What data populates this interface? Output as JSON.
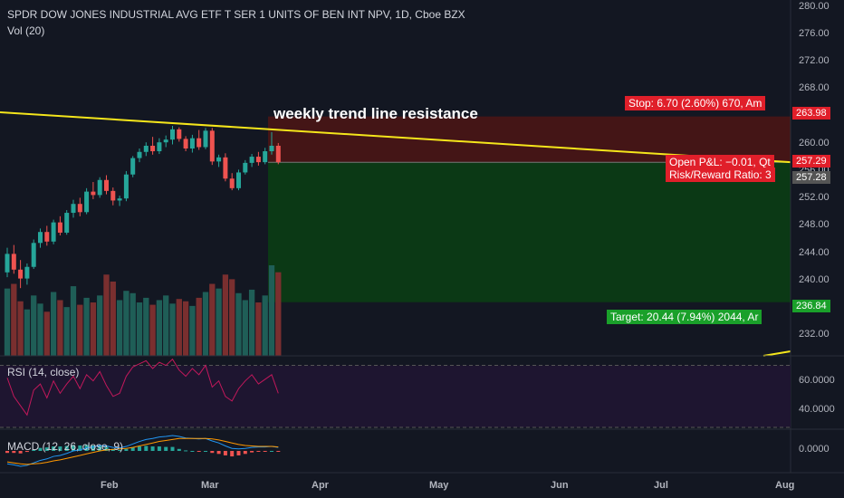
{
  "header": {
    "title": "SPDR DOW JONES INDUSTRIAL AVG ETF T SER 1 UNITS OF BEN INT NPV, 1D, Cboe BZX",
    "volume_label": "Vol (20)"
  },
  "annotation": "weekly trend line resistance",
  "position": {
    "stop_label": "Stop: 6.70 (2.60%) 670, Am",
    "pnl_label": "Open P&L: −0.01, Qt",
    "rr_label": "Risk/Reward Ratio: 3",
    "target_label": "Target: 20.44 (7.94%) 2044, Ar"
  },
  "price_axis": {
    "ticks": [
      "280.00",
      "276.00",
      "272.00",
      "268.00",
      "264.00",
      "260.00",
      "256.00",
      "252.00",
      "248.00",
      "244.00",
      "240.00",
      "236.00",
      "232.00"
    ],
    "markers": {
      "stop": "263.98",
      "last": "257.29",
      "entry": "257.28",
      "target": "236.84"
    }
  },
  "rsi": {
    "label": "RSI (14, close)",
    "ticks": [
      "60.0000",
      "40.0000"
    ]
  },
  "macd": {
    "label": "MACD (12, 26, close, 9)",
    "ticks": [
      "0.0000"
    ]
  },
  "time_axis": {
    "labels": [
      "Feb",
      "Mar",
      "Apr",
      "May",
      "Jun",
      "Jul",
      "Aug"
    ]
  },
  "colors": {
    "background": "#131722",
    "up": "#26a69a",
    "down": "#ef5350",
    "trendline": "#f5e61b",
    "stop_zone": "#4a1515",
    "target_zone": "#0b3d14",
    "stop_tag": "#e01f2a",
    "target_tag": "#1aa02a",
    "rsi_line": "#c2185b",
    "macd_line": "#2196f3",
    "signal_line": "#ff9800"
  },
  "chart_data": {
    "type": "candlestick",
    "price_range": [
      230,
      281
    ],
    "candles": [
      [
        241.2,
        244.8,
        240.5,
        243.9
      ],
      [
        243.9,
        245.2,
        241.0,
        241.6
      ],
      [
        241.6,
        243.0,
        238.9,
        240.3
      ],
      [
        240.3,
        242.5,
        239.4,
        242.0
      ],
      [
        242.0,
        246.0,
        241.7,
        245.5
      ],
      [
        245.5,
        247.6,
        244.8,
        247.1
      ],
      [
        247.1,
        248.0,
        245.1,
        245.7
      ],
      [
        245.7,
        248.9,
        245.3,
        248.5
      ],
      [
        248.5,
        249.4,
        246.6,
        247.0
      ],
      [
        247.0,
        250.3,
        246.7,
        249.9
      ],
      [
        249.9,
        251.8,
        249.2,
        251.2
      ],
      [
        251.2,
        252.1,
        249.4,
        250.0
      ],
      [
        250.0,
        253.5,
        249.7,
        253.0
      ],
      [
        253.0,
        254.4,
        251.9,
        252.5
      ],
      [
        252.5,
        255.1,
        252.1,
        254.7
      ],
      [
        254.7,
        255.4,
        252.6,
        253.1
      ],
      [
        253.1,
        253.6,
        251.0,
        251.7
      ],
      [
        251.7,
        252.4,
        250.9,
        252.0
      ],
      [
        252.0,
        256.0,
        251.6,
        255.5
      ],
      [
        255.5,
        258.2,
        255.1,
        257.9
      ],
      [
        257.9,
        259.3,
        257.3,
        258.8
      ],
      [
        258.8,
        260.2,
        258.2,
        259.7
      ],
      [
        259.7,
        261.0,
        258.4,
        258.9
      ],
      [
        258.9,
        260.8,
        258.5,
        260.2
      ],
      [
        260.2,
        261.2,
        259.5,
        260.6
      ],
      [
        260.6,
        262.6,
        259.9,
        262.1
      ],
      [
        262.1,
        262.4,
        260.3,
        260.7
      ],
      [
        260.7,
        261.1,
        258.9,
        259.3
      ],
      [
        259.3,
        261.3,
        258.7,
        260.8
      ],
      [
        260.8,
        262.0,
        259.1,
        259.5
      ],
      [
        259.5,
        262.3,
        259.2,
        261.9
      ],
      [
        261.9,
        262.3,
        256.9,
        257.4
      ],
      [
        257.4,
        258.4,
        256.6,
        258.0
      ],
      [
        258.0,
        258.6,
        254.5,
        254.9
      ],
      [
        254.9,
        255.7,
        253.2,
        253.5
      ],
      [
        253.5,
        256.2,
        253.2,
        255.8
      ],
      [
        255.8,
        257.6,
        255.5,
        257.2
      ],
      [
        257.2,
        258.5,
        256.6,
        258.1
      ],
      [
        258.1,
        258.8,
        256.8,
        257.3
      ],
      [
        257.3,
        259.4,
        257.0,
        258.9
      ],
      [
        258.9,
        261.7,
        258.4,
        259.7
      ],
      [
        259.7,
        260.1,
        257.0,
        257.3
      ]
    ],
    "volume": [
      58,
      62,
      47,
      40,
      52,
      45,
      38,
      55,
      48,
      42,
      60,
      44,
      50,
      46,
      52,
      70,
      64,
      48,
      56,
      54,
      46,
      50,
      44,
      48,
      52,
      45,
      49,
      47,
      43,
      50,
      55,
      62,
      58,
      70,
      66,
      54,
      48,
      57,
      46,
      52,
      78,
      72
    ],
    "trendline": {
      "start_price": 264.6,
      "end_price": 257.3
    },
    "position": {
      "entry": 257.28,
      "stop": 263.98,
      "target": 236.84
    },
    "rsi": [
      62,
      50,
      44,
      38,
      54,
      58,
      49,
      60,
      52,
      58,
      63,
      55,
      64,
      60,
      66,
      57,
      50,
      52,
      63,
      69,
      71,
      73,
      68,
      72,
      70,
      74,
      67,
      63,
      68,
      64,
      70,
      56,
      60,
      50,
      47,
      55,
      60,
      64,
      58,
      61,
      64,
      52
    ],
    "rsi_range": [
      30,
      75
    ],
    "macd": [
      -2.6,
      -2.8,
      -3.1,
      -2.9,
      -2.4,
      -1.9,
      -1.6,
      -1.1,
      -0.9,
      -0.5,
      0.0,
      0.2,
      0.6,
      0.8,
      1.1,
      1.0,
      0.7,
      0.6,
      0.9,
      1.4,
      1.9,
      2.3,
      2.5,
      2.8,
      2.9,
      3.1,
      2.9,
      2.6,
      2.5,
      2.4,
      2.5,
      2.0,
      1.6,
      1.0,
      0.5,
      0.4,
      0.5,
      0.7,
      0.8,
      0.8,
      0.9,
      0.7
    ],
    "signal": [
      -2.2,
      -2.4,
      -2.6,
      -2.7,
      -2.6,
      -2.5,
      -2.3,
      -2.0,
      -1.8,
      -1.5,
      -1.2,
      -0.9,
      -0.6,
      -0.3,
      0.0,
      0.2,
      0.3,
      0.4,
      0.5,
      0.7,
      1.0,
      1.3,
      1.6,
      1.9,
      2.1,
      2.3,
      2.5,
      2.5,
      2.5,
      2.5,
      2.5,
      2.4,
      2.2,
      1.9,
      1.6,
      1.3,
      1.1,
      1.0,
      0.9,
      0.9,
      0.9,
      0.8
    ],
    "macd_range": [
      -4,
      4
    ]
  }
}
